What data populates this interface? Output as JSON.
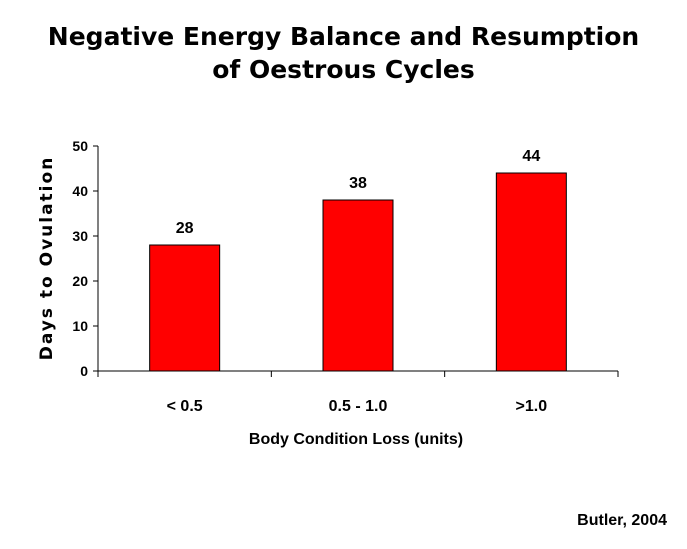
{
  "chart_data": {
    "type": "bar",
    "title_lines": [
      "Negative Energy Balance and Resumption",
      "of Oestrous Cycles"
    ],
    "categories": [
      "< 0.5",
      "0.5 - 1.0",
      ">1.0"
    ],
    "values": [
      28,
      38,
      44
    ],
    "data_labels": [
      "28",
      "38",
      "44"
    ],
    "xlabel": "Body Condition Loss (units)",
    "ylabel": "Days to Ovulation",
    "ylim": [
      0,
      50
    ],
    "yticks": [
      "0",
      "10",
      "20",
      "30",
      "40",
      "50"
    ],
    "grid": false,
    "legend": "none",
    "bar_color": "#ff0000",
    "bar_edge_color": "#000000"
  },
  "citation": "Butler, 2004"
}
